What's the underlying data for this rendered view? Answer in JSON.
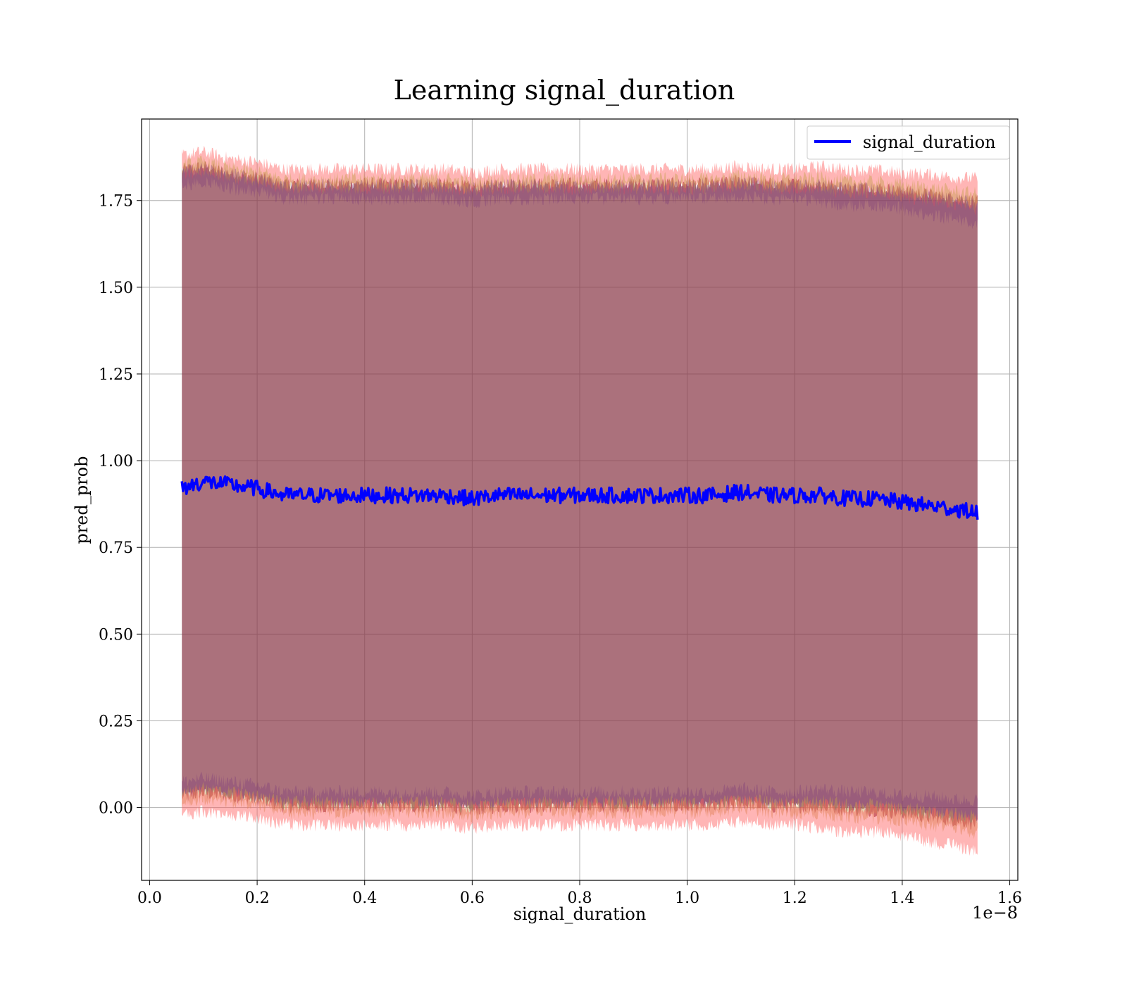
{
  "chart_data": {
    "type": "line",
    "title": "Learning signal_duration",
    "xlabel": "signal_duration",
    "ylabel": "pred_prob",
    "x_offset_label": "1e−8",
    "xlim": [
      -0.015,
      1.615
    ],
    "ylim": [
      -0.21,
      1.985
    ],
    "xticks": [
      0.0,
      0.2,
      0.4,
      0.6,
      0.8,
      1.0,
      1.2,
      1.4,
      1.6
    ],
    "xtick_labels": [
      "0.0",
      "0.2",
      "0.4",
      "0.6",
      "0.8",
      "1.0",
      "1.2",
      "1.4",
      "1.6"
    ],
    "yticks": [
      0.0,
      0.25,
      0.5,
      0.75,
      1.0,
      1.25,
      1.5,
      1.75
    ],
    "ytick_labels": [
      "0.00",
      "0.25",
      "0.50",
      "0.75",
      "1.00",
      "1.25",
      "1.50",
      "1.75"
    ],
    "grid": true,
    "legend_position": "top-right",
    "series": [
      {
        "name": "signal_duration",
        "color": "#0000ff",
        "x": [
          0.06,
          0.1,
          0.15,
          0.2,
          0.25,
          0.3,
          0.35,
          0.4,
          0.45,
          0.5,
          0.55,
          0.6,
          0.65,
          0.7,
          0.75,
          0.8,
          0.85,
          0.9,
          0.95,
          1.0,
          1.05,
          1.1,
          1.15,
          1.2,
          1.25,
          1.3,
          1.35,
          1.4,
          1.45,
          1.5,
          1.54
        ],
        "y": [
          0.92,
          0.94,
          0.93,
          0.92,
          0.9,
          0.9,
          0.9,
          0.9,
          0.9,
          0.9,
          0.9,
          0.89,
          0.9,
          0.9,
          0.9,
          0.9,
          0.9,
          0.9,
          0.9,
          0.9,
          0.9,
          0.91,
          0.9,
          0.9,
          0.9,
          0.89,
          0.89,
          0.88,
          0.87,
          0.86,
          0.85
        ]
      }
    ],
    "bands": [
      {
        "color": "#8b3a4a",
        "x": [
          0.06,
          0.1,
          0.15,
          0.2,
          0.25,
          0.3,
          0.35,
          0.4,
          0.45,
          0.5,
          0.55,
          0.6,
          0.65,
          0.7,
          0.75,
          0.8,
          0.85,
          0.9,
          0.95,
          1.0,
          1.05,
          1.1,
          1.15,
          1.2,
          1.25,
          1.3,
          1.35,
          1.4,
          1.45,
          1.5,
          1.54
        ],
        "upper": [
          1.84,
          1.85,
          1.83,
          1.82,
          1.8,
          1.8,
          1.8,
          1.8,
          1.8,
          1.8,
          1.8,
          1.79,
          1.8,
          1.8,
          1.8,
          1.8,
          1.8,
          1.8,
          1.8,
          1.8,
          1.8,
          1.81,
          1.8,
          1.8,
          1.8,
          1.79,
          1.79,
          1.78,
          1.77,
          1.76,
          1.75
        ],
        "lower": [
          0.03,
          0.04,
          0.03,
          0.02,
          0.0,
          0.0,
          0.0,
          0.0,
          0.0,
          0.0,
          0.0,
          -0.01,
          0.0,
          0.0,
          0.0,
          0.0,
          0.0,
          0.0,
          0.0,
          0.0,
          0.0,
          0.01,
          0.0,
          0.0,
          0.0,
          -0.01,
          -0.01,
          -0.02,
          -0.03,
          -0.04,
          -0.05
        ],
        "edge_spread": [
          0.05,
          0.05,
          0.05,
          0.05,
          0.05,
          0.05,
          0.05,
          0.05,
          0.05,
          0.05,
          0.05,
          0.05,
          0.05,
          0.05,
          0.05,
          0.05,
          0.05,
          0.05,
          0.05,
          0.05,
          0.05,
          0.05,
          0.05,
          0.05,
          0.06,
          0.06,
          0.06,
          0.06,
          0.07,
          0.07,
          0.08
        ]
      }
    ]
  }
}
